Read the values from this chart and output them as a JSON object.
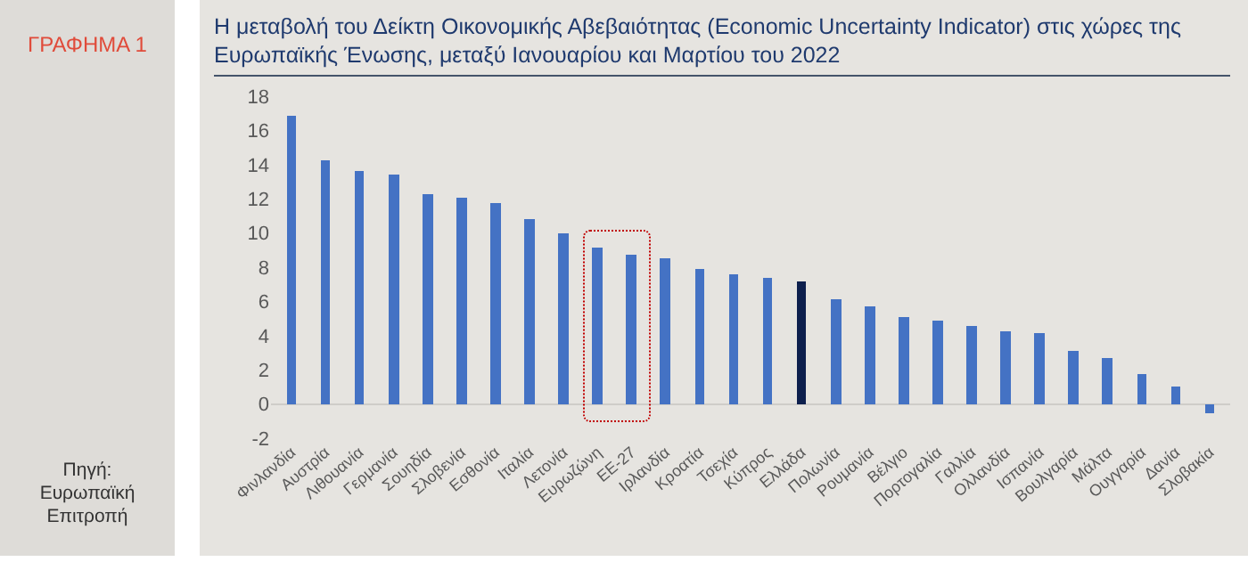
{
  "chart_data": {
    "type": "bar",
    "title": "Η μεταβολή του Δείκτη Οικονομικής Αβεβαιότητας (Economic Uncertainty Indicator) στις χώρες της Ευρωπαϊκής Ένωσης, μεταξύ Ιανουαρίου και Μαρτίου του 2022",
    "annotations": [
      "ΓΡΑΦΗΜΑ 1",
      "Πηγή:\nΕυρωπαϊκή\nΕπιτροπή"
    ],
    "categories": [
      "Φινλανδία",
      "Αυστρία",
      "Λιθουανία",
      "Γερμανία",
      "Σουηδία",
      "Σλοβενία",
      "Εσθονία",
      "Ιταλία",
      "Λετονία",
      "Ευρωζώνη",
      "ΕΕ-27",
      "Ιρλανδία",
      "Κροατία",
      "Τσεχία",
      "Κύπρος",
      "Ελλάδα",
      "Πολωνία",
      "Ρουμανία",
      "Βέλγιο",
      "Πορτογαλία",
      "Γαλλία",
      "Ολλανδία",
      "Ισπανία",
      "Βουλγαρία",
      "Μάλτα",
      "Ουγγαρία",
      "Δανία",
      "Σλοβακία"
    ],
    "values": [
      16.9,
      14.2,
      13.6,
      13.4,
      12.3,
      12.1,
      11.8,
      10.8,
      10.0,
      9.1,
      8.7,
      8.5,
      7.9,
      7.6,
      7.4,
      7.2,
      6.1,
      5.7,
      5.1,
      4.9,
      4.6,
      4.2,
      4.1,
      3.1,
      2.7,
      1.7,
      1.0,
      -0.5
    ],
    "colors": [
      "#4472c4",
      "#4472c4",
      "#4472c4",
      "#4472c4",
      "#4472c4",
      "#4472c4",
      "#4472c4",
      "#4472c4",
      "#4472c4",
      "#4472c4",
      "#4472c4",
      "#4472c4",
      "#4472c4",
      "#4472c4",
      "#4472c4",
      "#0d1f4d",
      "#4472c4",
      "#4472c4",
      "#4472c4",
      "#4472c4",
      "#4472c4",
      "#4472c4",
      "#4472c4",
      "#4472c4",
      "#4472c4",
      "#4472c4",
      "#4472c4",
      "#4472c4"
    ],
    "ylim": [
      -2,
      18
    ],
    "yticks": [
      -2,
      0,
      2,
      4,
      6,
      8,
      10,
      12,
      14,
      16,
      18
    ],
    "grid": false
  }
}
